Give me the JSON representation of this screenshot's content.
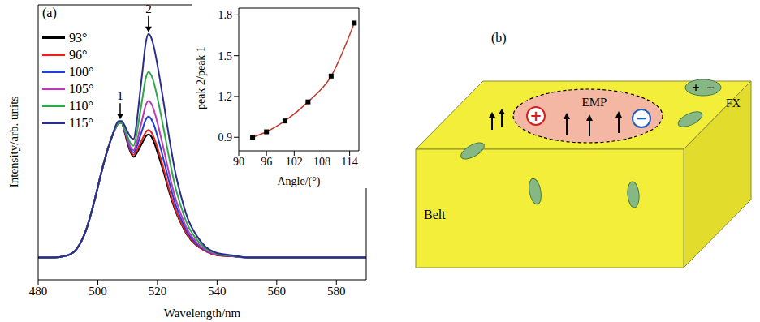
{
  "chart_data": [
    {
      "type": "line",
      "label": "(a)",
      "x_label": "Wavelength/nm",
      "y_label": "Intensity/arb. units",
      "x": [
        480,
        485,
        490,
        493,
        496,
        499,
        501,
        503,
        505,
        506,
        507,
        508,
        509,
        510,
        511,
        512,
        513,
        514,
        515,
        516,
        517,
        518,
        519,
        520,
        522,
        524,
        526,
        528,
        530,
        533,
        536,
        540,
        545,
        550,
        560,
        570,
        580,
        590
      ],
      "series": [
        {
          "name": "93°",
          "color": "#000000",
          "values": [
            0,
            0,
            0.01,
            0.04,
            0.12,
            0.26,
            0.37,
            0.47,
            0.55,
            0.58,
            0.6,
            0.6,
            0.56,
            0.51,
            0.47,
            0.45,
            0.465,
            0.49,
            0.515,
            0.54,
            0.55,
            0.54,
            0.51,
            0.47,
            0.385,
            0.29,
            0.21,
            0.15,
            0.1,
            0.055,
            0.03,
            0.01,
            0.005,
            0,
            0,
            0,
            0,
            0
          ]
        },
        {
          "name": "96°",
          "color": "#e8201e",
          "values": [
            0,
            0,
            0.01,
            0.04,
            0.12,
            0.26,
            0.37,
            0.47,
            0.55,
            0.58,
            0.6,
            0.6,
            0.565,
            0.52,
            0.475,
            0.46,
            0.476,
            0.504,
            0.532,
            0.559,
            0.57,
            0.559,
            0.53,
            0.49,
            0.4,
            0.3,
            0.217,
            0.154,
            0.103,
            0.057,
            0.029,
            0.011,
            0.006,
            0,
            0,
            0,
            0,
            0
          ]
        },
        {
          "name": "100°",
          "color": "#1f3fd6",
          "values": [
            0,
            0,
            0.01,
            0.04,
            0.12,
            0.26,
            0.37,
            0.47,
            0.55,
            0.58,
            0.6,
            0.6,
            0.568,
            0.522,
            0.483,
            0.47,
            0.494,
            0.534,
            0.574,
            0.614,
            0.63,
            0.617,
            0.586,
            0.542,
            0.441,
            0.334,
            0.239,
            0.17,
            0.113,
            0.063,
            0.032,
            0.013,
            0.006,
            0,
            0,
            0,
            0,
            0
          ]
        },
        {
          "name": "105°",
          "color": "#b93bb6",
          "values": [
            0,
            0,
            0.01,
            0.04,
            0.12,
            0.26,
            0.37,
            0.47,
            0.55,
            0.58,
            0.6,
            0.6,
            0.57,
            0.528,
            0.492,
            0.48,
            0.513,
            0.568,
            0.623,
            0.678,
            0.7,
            0.686,
            0.651,
            0.602,
            0.49,
            0.371,
            0.266,
            0.189,
            0.126,
            0.07,
            0.035,
            0.014,
            0.007,
            0,
            0,
            0,
            0,
            0
          ]
        },
        {
          "name": "110°",
          "color": "#2ea84a",
          "values": [
            0,
            0,
            0.01,
            0.04,
            0.12,
            0.26,
            0.37,
            0.47,
            0.55,
            0.58,
            0.6,
            0.6,
            0.575,
            0.54,
            0.51,
            0.5,
            0.55,
            0.632,
            0.715,
            0.797,
            0.83,
            0.813,
            0.772,
            0.714,
            0.581,
            0.44,
            0.315,
            0.224,
            0.149,
            0.083,
            0.042,
            0.017,
            0.008,
            0,
            0,
            0,
            0,
            0
          ]
        },
        {
          "name": "115°",
          "color": "#2a2d8c",
          "values": [
            0,
            0,
            0.01,
            0.04,
            0.12,
            0.26,
            0.37,
            0.47,
            0.55,
            0.59,
            0.61,
            0.61,
            0.59,
            0.562,
            0.538,
            0.53,
            0.6,
            0.718,
            0.836,
            0.953,
            1.0,
            0.98,
            0.93,
            0.86,
            0.7,
            0.53,
            0.38,
            0.27,
            0.18,
            0.1,
            0.05,
            0.02,
            0.01,
            0,
            0,
            0,
            0,
            0
          ]
        }
      ],
      "xlim": [
        480,
        590
      ],
      "xticks": [
        480,
        500,
        520,
        540,
        560,
        580
      ],
      "ylim": [
        -0.1,
        1.13
      ],
      "yticks": [],
      "tick_labels": "x",
      "legend": "upper left",
      "annotations": [
        {
          "text": "1",
          "x": 507.5,
          "y": 0.61
        },
        {
          "text": "2",
          "x": 517,
          "y": 1.0
        }
      ]
    },
    {
      "type": "line",
      "x_label": "Angle/(°)",
      "y_label": "peak 2/peak 1",
      "x": [
        93,
        96,
        100,
        105,
        110,
        115
      ],
      "values": [
        0.9,
        0.94,
        1.02,
        1.16,
        1.35,
        1.74
      ],
      "color": "#c0392b",
      "marker": "square",
      "xlim": [
        90,
        116
      ],
      "xticks": [
        90,
        96,
        102,
        108,
        114
      ],
      "ylim": [
        0.8,
        1.85
      ],
      "yticks": [
        0.9,
        1.2,
        1.5,
        1.8
      ]
    }
  ],
  "diagram": {
    "label": "(b)",
    "belt": "Belt",
    "emp": {
      "label": "EMP",
      "charges": [
        "+",
        "−"
      ]
    },
    "fx": {
      "label": "FX",
      "charges": [
        "+",
        "−"
      ]
    }
  }
}
